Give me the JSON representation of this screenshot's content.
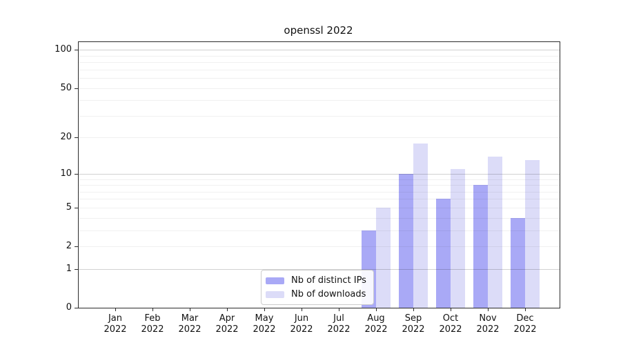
{
  "title": "openssl 2022",
  "year": "2022",
  "legend": {
    "items": [
      {
        "label": "Nb of distinct IPs",
        "color": "#a9a9f6"
      },
      {
        "label": "Nb of downloads",
        "color": "#dcdcf8"
      }
    ]
  },
  "chart_data": {
    "type": "bar",
    "title": "openssl 2022",
    "categories": [
      "Jan",
      "Feb",
      "Mar",
      "Apr",
      "May",
      "Jun",
      "Jul",
      "Aug",
      "Sep",
      "Oct",
      "Nov",
      "Dec"
    ],
    "category_year": "2022",
    "series": [
      {
        "name": "Nb of distinct IPs",
        "color": "#a9a9f6",
        "values": [
          0,
          0,
          0,
          0,
          0,
          0,
          0,
          3,
          10,
          6,
          8,
          4
        ]
      },
      {
        "name": "Nb of downloads",
        "color": "#dcdcf8",
        "values": [
          0,
          0,
          0,
          0,
          0,
          0,
          0,
          5,
          18,
          11,
          14,
          13
        ]
      }
    ],
    "xlabel": "",
    "ylabel": "",
    "scale": "log1p",
    "ylim": [
      0,
      115
    ],
    "yticks": [
      100,
      50,
      20,
      10,
      5,
      2,
      1,
      0
    ],
    "major_gridlines": [
      1,
      10,
      100
    ],
    "minor_gridlines": [
      2,
      3,
      4,
      5,
      6,
      7,
      8,
      9,
      20,
      30,
      40,
      50,
      60,
      70,
      80,
      90
    ],
    "grid": "on",
    "legend_position": "lower center"
  }
}
